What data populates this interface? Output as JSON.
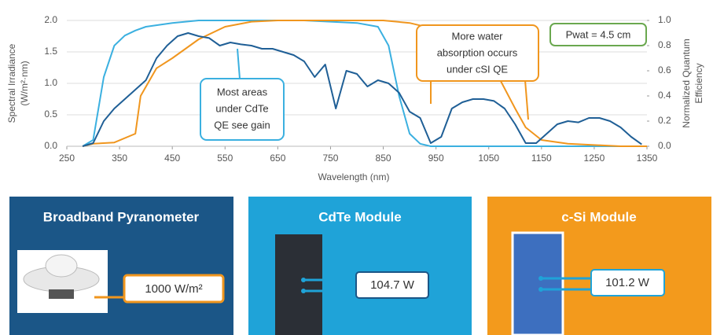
{
  "chart_data": {
    "type": "line",
    "xlabel": "Wavelength (nm)",
    "ylabel_lines": [
      "Spectral Irradiance",
      "(W/m²·nm)"
    ],
    "y2label_lines": [
      "Normalized Quantum",
      "Efficiency"
    ],
    "xlim": [
      250,
      1350
    ],
    "xticks": [
      250,
      350,
      450,
      550,
      650,
      750,
      850,
      950,
      1050,
      1150,
      1250,
      1350
    ],
    "ylim": [
      0,
      2.0
    ],
    "yticks": [
      {
        "value": 0,
        "label": "0.0"
      },
      {
        "value": 0.5,
        "label": "0.5"
      },
      {
        "value": 1.0,
        "label": "1.0"
      },
      {
        "value": 1.5,
        "label": "1.5"
      },
      {
        "value": 2.0,
        "label": "2.0"
      }
    ],
    "y2lim": [
      0,
      1.0
    ],
    "y2ticks": [
      {
        "value": 0,
        "label": "0.0"
      },
      {
        "value": 0.2,
        "label": "0.2"
      },
      {
        "value": 0.4,
        "label": "0.4"
      },
      {
        "value": 0.6,
        "label": "0.6"
      },
      {
        "value": 0.8,
        "label": "0.8"
      },
      {
        "value": 1.0,
        "label": "1.0"
      }
    ],
    "grid": true,
    "series": [
      {
        "color": "#3bb0e0",
        "axis": "y2",
        "x": [
          280,
          300,
          320,
          340,
          360,
          380,
          400,
          450,
          500,
          600,
          700,
          800,
          840,
          860,
          880,
          900,
          920,
          940,
          1350
        ],
        "values": [
          0,
          0.05,
          0.55,
          0.8,
          0.88,
          0.92,
          0.95,
          0.98,
          1.0,
          1.0,
          1.0,
          0.98,
          0.95,
          0.8,
          0.4,
          0.1,
          0.02,
          0,
          0
        ]
      },
      {
        "color": "#f0961e",
        "axis": "y2",
        "x": [
          280,
          300,
          340,
          380,
          390,
          420,
          450,
          500,
          550,
          600,
          650,
          700,
          750,
          800,
          850,
          900,
          950,
          1000,
          1050,
          1100,
          1120,
          1150,
          1200,
          1300,
          1350
        ],
        "values": [
          0,
          0.02,
          0.03,
          0.1,
          0.4,
          0.62,
          0.7,
          0.85,
          0.95,
          0.99,
          1.0,
          1.0,
          1.0,
          1.0,
          1.0,
          0.98,
          0.93,
          0.85,
          0.7,
          0.3,
          0.15,
          0.05,
          0.02,
          0,
          0
        ]
      },
      {
        "color": "#1f5f96",
        "x": [
          280,
          300,
          320,
          340,
          360,
          380,
          400,
          420,
          440,
          460,
          480,
          500,
          520,
          540,
          560,
          580,
          600,
          620,
          640,
          660,
          680,
          700,
          720,
          740,
          760,
          780,
          800,
          820,
          840,
          860,
          880,
          900,
          920,
          940,
          960,
          980,
          1000,
          1020,
          1040,
          1060,
          1080,
          1100,
          1120,
          1140,
          1160,
          1180,
          1200,
          1220,
          1240,
          1260,
          1280,
          1300,
          1320,
          1340
        ],
        "values": [
          0,
          0.05,
          0.4,
          0.6,
          0.75,
          0.9,
          1.05,
          1.4,
          1.6,
          1.75,
          1.8,
          1.75,
          1.72,
          1.6,
          1.65,
          1.62,
          1.6,
          1.55,
          1.55,
          1.5,
          1.45,
          1.35,
          1.1,
          1.3,
          0.6,
          1.2,
          1.15,
          0.95,
          1.05,
          1.0,
          0.85,
          0.55,
          0.45,
          0.05,
          0.15,
          0.6,
          0.7,
          0.75,
          0.75,
          0.72,
          0.6,
          0.35,
          0.05,
          0.05,
          0.2,
          0.35,
          0.4,
          0.38,
          0.45,
          0.45,
          0.4,
          0.3,
          0.15,
          0.03
        ]
      }
    ],
    "annotations": [
      {
        "lines": [
          "Most areas",
          "under CdTe",
          "QE see gain"
        ]
      },
      {
        "lines": [
          "More water",
          "absorption occurs",
          "under cSI QE"
        ]
      },
      {
        "lines": [
          "Pwat = 4.5 cm"
        ]
      }
    ]
  },
  "panels": [
    {
      "title": "Broadband Pyranometer",
      "reading": "1000 W/m²"
    },
    {
      "title": "CdTe Module",
      "reading": "104.7 W"
    },
    {
      "title": "c-Si Module",
      "reading": "101.2 W"
    }
  ]
}
